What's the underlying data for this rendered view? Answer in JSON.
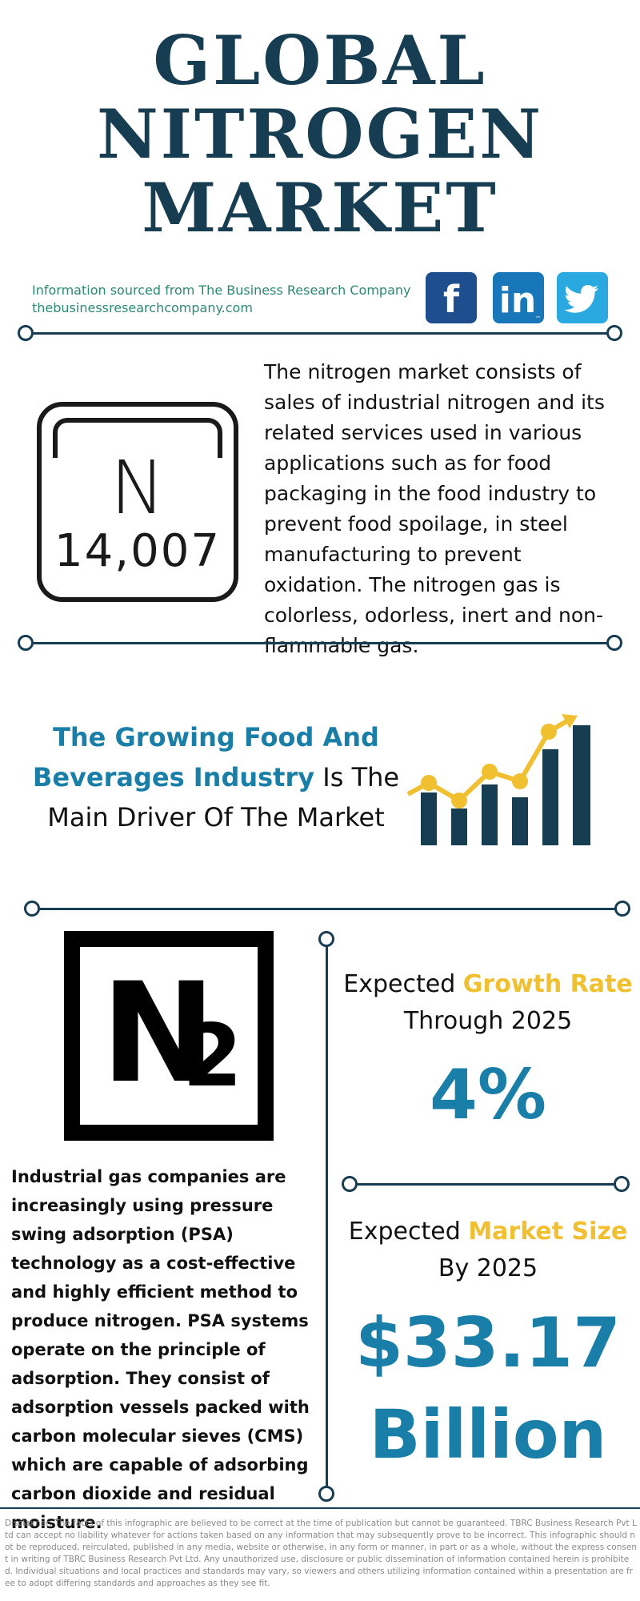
{
  "title": {
    "line1": "GLOBAL",
    "line2": "NITROGEN",
    "line3": "MARKET"
  },
  "source": {
    "line1": "Information sourced from The Business Research Company",
    "line2": "thebusinessresearchcompany.com"
  },
  "social": {
    "facebook": "f",
    "linkedin": "in",
    "linkedin_tm": "™",
    "icons": [
      "facebook-icon",
      "linkedin-icon",
      "twitter-icon"
    ],
    "colors": {
      "facebook": "#1f4e8f",
      "linkedin": "#1877b8",
      "twitter": "#2aa9e0"
    }
  },
  "intro": {
    "text": "The nitrogen market consists of sales of industrial nitrogen and its related services used in various applications such as for food packaging in the food industry to prevent food spoilage, in steel manufacturing to prevent oxidation. The nitrogen gas is colorless, odorless, inert and non-flammable gas."
  },
  "element": {
    "symbol": "N",
    "weight": "14,007"
  },
  "driver": {
    "highlight": "The Growing Food And Beverages Industry",
    "rest_1": " Is The",
    "rest_2": "Main Driver Of The Market"
  },
  "n2": {
    "symbol": "N",
    "subscript": "2"
  },
  "psa": {
    "text": "Industrial gas companies are increasingly using pressure swing adsorption (PSA) technology as a cost-effective and highly efficient method to produce nitrogen. PSA systems operate on the principle of adsorption. They consist of adsorption vessels packed with carbon molecular sieves (CMS) which are capable of adsorbing carbon dioxide and residual moisture."
  },
  "growth": {
    "prefix": "Expected ",
    "highlight": "Growth Rate",
    "line2": "Through 2025",
    "value": "4%"
  },
  "market_size": {
    "prefix": "Expected ",
    "highlight": "Market Size",
    "line2": "By 2025",
    "value_line1": "$33.17",
    "value_line2": "Billion"
  },
  "colors": {
    "navy": "#163d52",
    "blue": "#1a7fa8",
    "yellow": "#f0c030",
    "green": "#2b8a6f"
  },
  "disclaimer": "Disclaimer: The facts of this infographic are believed to be correct at the time of publication but cannot be guaranteed. TBRC Business Research Pvt Ltd can accept no liability whatever for actions taken based on any information that may subsequently prove to be incorrect. This infographic should not be reproduced, reirculated, published in any media, website or otherwise, in any form or manner, in part or as a whole, without the express consent in writing of TBRC Business Research Pvt Ltd. Any unauthorized use, disclosure or public dissemination of information contained herein is prohibited. Individual situations and local practices and standards may vary, so viewers and others utilizing information contained within a presentation are free to adopt differing standards and approaches as they see fit."
}
